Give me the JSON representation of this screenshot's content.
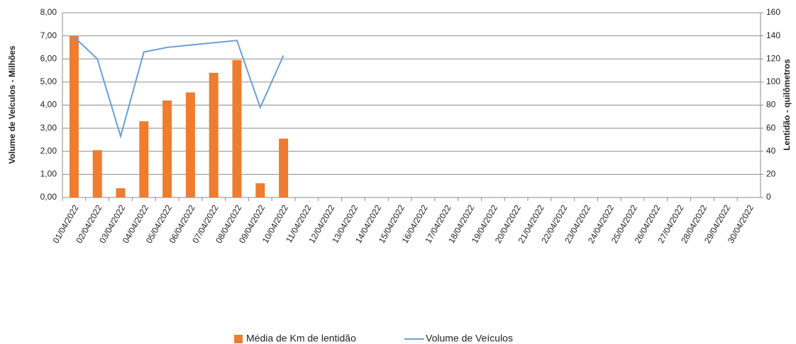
{
  "chart_data": {
    "type": "combo",
    "y_label": "Volume de Veículos  - Milhões",
    "y2_label": "Lentidão - quilômetros",
    "categories": [
      "01/04/2022",
      "02/04/2022",
      "03/04/2022",
      "04/04/2022",
      "05/04/2022",
      "06/04/2022",
      "07/04/2022",
      "08/04/2022",
      "09/04/2022",
      "10/04/2022",
      "11/04/2022",
      "12/04/2022",
      "13/04/2022",
      "14/04/2022",
      "15/04/2022",
      "16/04/2022",
      "17/04/2022",
      "18/04/2022",
      "19/04/2022",
      "20/04/2022",
      "21/04/2022",
      "22/04/2022",
      "23/04/2022",
      "24/04/2022",
      "25/04/2022",
      "26/04/2022",
      "27/04/2022",
      "28/04/2022",
      "29/04/2022",
      "30/04/2022"
    ],
    "series": [
      {
        "name": "Média de Km de lentidão",
        "type": "bar",
        "axis": "y2",
        "color": "#ed7d31",
        "values": [
          140,
          41,
          8,
          66,
          84,
          91,
          108,
          119,
          12.4,
          51,
          null,
          null,
          null,
          null,
          null,
          null,
          null,
          null,
          null,
          null,
          null,
          null,
          null,
          null,
          null,
          null,
          null,
          null,
          null,
          null
        ]
      },
      {
        "name": "Volume de Veículos",
        "type": "line",
        "axis": "y",
        "color": "#6a9fd4",
        "values": [
          6.95,
          6.0,
          2.65,
          6.3,
          6.5,
          6.6,
          6.7,
          6.8,
          3.9,
          6.15,
          null,
          null,
          null,
          null,
          null,
          null,
          null,
          null,
          null,
          null,
          null,
          null,
          null,
          null,
          null,
          null,
          null,
          null,
          null,
          null
        ]
      }
    ],
    "ylim": [
      0,
      8
    ],
    "yticks": [
      {
        "value": 0,
        "label": "0,00"
      },
      {
        "value": 1,
        "label": "1,00"
      },
      {
        "value": 2,
        "label": "2,00"
      },
      {
        "value": 3,
        "label": "3,00"
      },
      {
        "value": 4,
        "label": "4,00"
      },
      {
        "value": 5,
        "label": "5,00"
      },
      {
        "value": 6,
        "label": "6,00"
      },
      {
        "value": 7,
        "label": "7,00"
      },
      {
        "value": 8,
        "label": "8,00"
      }
    ],
    "y2lim": [
      0,
      160
    ],
    "y2ticks": [
      0,
      20,
      40,
      60,
      80,
      100,
      120,
      140,
      160
    ],
    "grid": true,
    "legend": "bottom"
  }
}
